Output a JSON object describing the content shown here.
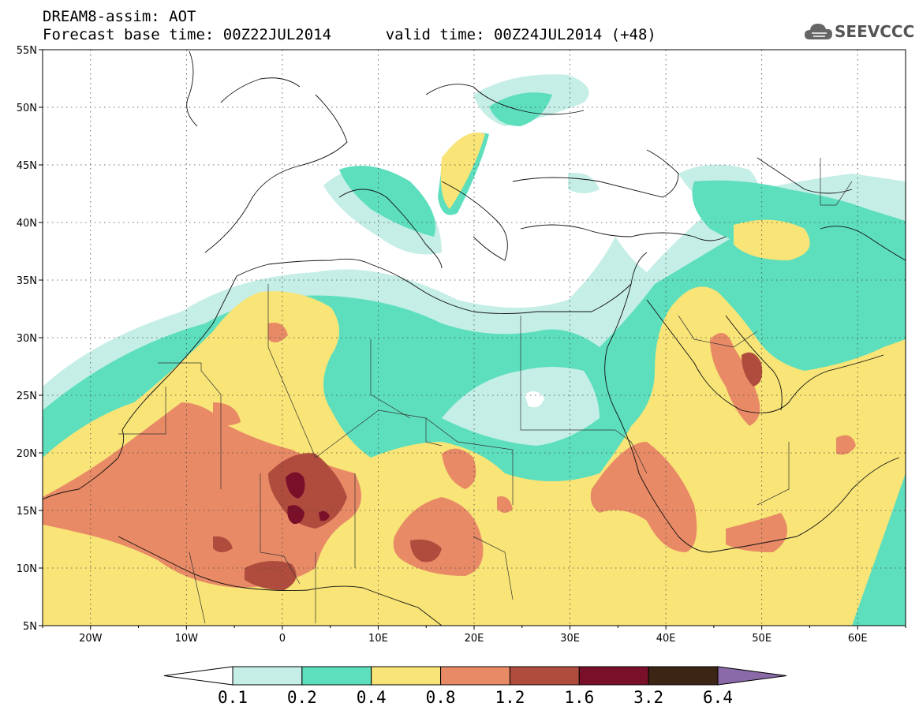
{
  "header": {
    "title": "DREAM8-assim: AOT",
    "base_time_label": "Forecast base time: 00Z22JUL2014",
    "valid_time_label": "valid time: 00Z24JUL2014 (+48)"
  },
  "logo": {
    "text": "SEEVCCC",
    "icon": "cloud-icon"
  },
  "map": {
    "projection": "cylindrical",
    "lon_range": [
      -25,
      65
    ],
    "lat_range": [
      5,
      55
    ],
    "lat_ticks": [
      "5N",
      "10N",
      "15N",
      "20N",
      "25N",
      "30N",
      "35N",
      "40N",
      "45N",
      "50N",
      "55N"
    ],
    "lon_ticks": [
      "20W",
      "10W",
      "0",
      "10E",
      "20E",
      "30E",
      "40E",
      "50E",
      "60E"
    ],
    "grid": "dotted"
  },
  "legend": {
    "levels": [
      "0.1",
      "0.2",
      "0.4",
      "0.8",
      "1.2",
      "1.6",
      "3.2",
      "6.4"
    ],
    "colors": [
      "#ffffff",
      "#c5eee6",
      "#5ddfbd",
      "#f8e477",
      "#e88a66",
      "#b04c3e",
      "#7a0f2a",
      "#3c2514",
      "#8a6aa8"
    ]
  }
}
